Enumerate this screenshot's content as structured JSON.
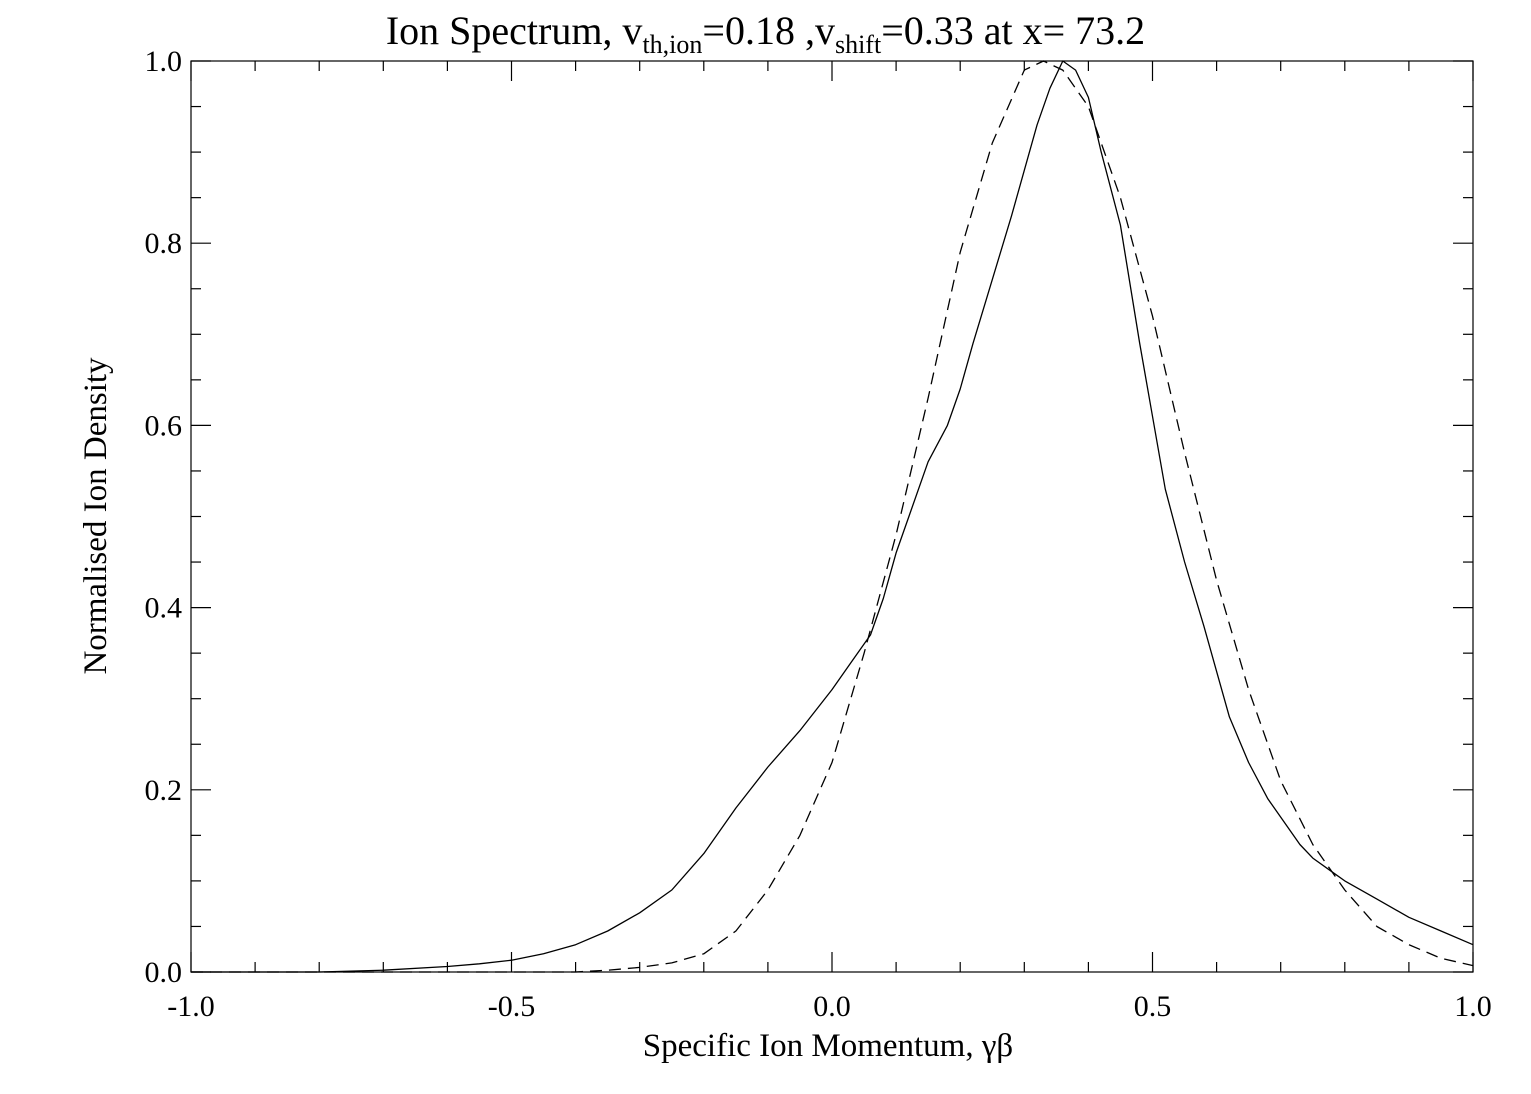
{
  "chart_data": {
    "type": "line",
    "title": {
      "prefix": "Ion Spectrum, v",
      "sub1": "th,ion",
      "mid1": "=0.18 ,v",
      "sub2": "shift",
      "mid2": "=0.33 at x=  73.2"
    },
    "xlabel": "Specific Ion Momentum, γβ",
    "ylabel": "Normalised Ion Density",
    "xlim": [
      -1.0,
      1.0
    ],
    "ylim": [
      0.0,
      1.0
    ],
    "xticks": [
      "-1.0",
      "-0.5",
      "0.0",
      "0.5",
      "1.0"
    ],
    "yticks": [
      "0.0",
      "0.2",
      "0.4",
      "0.6",
      "0.8",
      "1.0"
    ],
    "grid": false,
    "legend": "none",
    "series": [
      {
        "style": "solid",
        "x": [
          -1.0,
          -0.9,
          -0.8,
          -0.7,
          -0.6,
          -0.55,
          -0.5,
          -0.45,
          -0.4,
          -0.35,
          -0.3,
          -0.25,
          -0.2,
          -0.15,
          -0.1,
          -0.05,
          0.0,
          0.03,
          0.06,
          0.08,
          0.1,
          0.12,
          0.15,
          0.18,
          0.2,
          0.22,
          0.25,
          0.28,
          0.3,
          0.32,
          0.34,
          0.36,
          0.38,
          0.4,
          0.42,
          0.45,
          0.48,
          0.5,
          0.52,
          0.55,
          0.58,
          0.6,
          0.62,
          0.65,
          0.68,
          0.7,
          0.73,
          0.75,
          0.78,
          0.8,
          0.85,
          0.9,
          0.95,
          1.0
        ],
        "y": [
          0.0,
          0.0,
          0.0,
          0.002,
          0.006,
          0.009,
          0.013,
          0.02,
          0.03,
          0.045,
          0.065,
          0.09,
          0.13,
          0.18,
          0.225,
          0.265,
          0.31,
          0.34,
          0.37,
          0.41,
          0.46,
          0.5,
          0.56,
          0.6,
          0.64,
          0.69,
          0.76,
          0.83,
          0.88,
          0.93,
          0.97,
          1.0,
          0.99,
          0.96,
          0.9,
          0.82,
          0.69,
          0.61,
          0.53,
          0.45,
          0.38,
          0.33,
          0.28,
          0.23,
          0.19,
          0.17,
          0.14,
          0.125,
          0.11,
          0.1,
          0.08,
          0.06,
          0.045,
          0.03
        ]
      },
      {
        "style": "dashed",
        "x": [
          -1.0,
          -0.8,
          -0.6,
          -0.5,
          -0.4,
          -0.35,
          -0.3,
          -0.25,
          -0.2,
          -0.15,
          -0.1,
          -0.05,
          0.0,
          0.05,
          0.1,
          0.15,
          0.2,
          0.25,
          0.3,
          0.33,
          0.36,
          0.4,
          0.45,
          0.5,
          0.55,
          0.6,
          0.65,
          0.7,
          0.75,
          0.8,
          0.85,
          0.9,
          0.95,
          1.0
        ],
        "y": [
          0.0,
          0.0,
          0.0,
          0.0,
          0.0,
          0.002,
          0.005,
          0.01,
          0.02,
          0.045,
          0.09,
          0.15,
          0.23,
          0.35,
          0.48,
          0.63,
          0.79,
          0.91,
          0.99,
          1.0,
          0.99,
          0.95,
          0.85,
          0.72,
          0.57,
          0.43,
          0.31,
          0.21,
          0.14,
          0.09,
          0.05,
          0.03,
          0.015,
          0.007
        ]
      }
    ]
  }
}
